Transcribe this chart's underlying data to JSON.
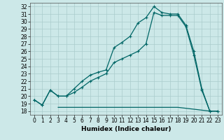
{
  "xlabel": "Humidex (Indice chaleur)",
  "bg_color": "#cce8e8",
  "grid_color": "#aacccc",
  "line_color": "#006666",
  "xlim": [
    -0.5,
    23.5
  ],
  "ylim": [
    17.5,
    32.5
  ],
  "xticks": [
    0,
    1,
    2,
    3,
    4,
    5,
    6,
    7,
    8,
    9,
    10,
    11,
    12,
    13,
    14,
    15,
    16,
    17,
    18,
    19,
    20,
    21,
    22,
    23
  ],
  "yticks": [
    18,
    19,
    20,
    21,
    22,
    23,
    24,
    25,
    26,
    27,
    28,
    29,
    30,
    31,
    32
  ],
  "line1_x": [
    0,
    1,
    2,
    3,
    4,
    5,
    6,
    7,
    8,
    9,
    10,
    11,
    12,
    13,
    14,
    15,
    16,
    17,
    18,
    19,
    20,
    21,
    22,
    23
  ],
  "line1_y": [
    19.5,
    18.8,
    20.8,
    20.0,
    20.0,
    21.0,
    22.0,
    22.8,
    23.2,
    23.5,
    26.5,
    27.2,
    28.0,
    29.8,
    30.5,
    32.0,
    31.2,
    31.0,
    31.0,
    29.5,
    26.0,
    21.0,
    18.0,
    18.0
  ],
  "line2_x": [
    0,
    1,
    2,
    3,
    4,
    5,
    6,
    7,
    8,
    9,
    10,
    11,
    12,
    13,
    14,
    15,
    16,
    17,
    18,
    19,
    20,
    21,
    22,
    23
  ],
  "line2_y": [
    19.5,
    18.8,
    20.8,
    20.0,
    20.0,
    20.5,
    21.2,
    22.0,
    22.5,
    23.0,
    24.5,
    25.0,
    25.5,
    26.0,
    27.0,
    31.2,
    30.8,
    30.8,
    30.8,
    29.3,
    25.5,
    20.8,
    18.0,
    18.0
  ],
  "line3_x": [
    3,
    15,
    18,
    22,
    23
  ],
  "line3_y": [
    18.5,
    18.5,
    18.5,
    18.0,
    18.0
  ],
  "tick_fontsize": 5.5,
  "xlabel_fontsize": 6.5
}
